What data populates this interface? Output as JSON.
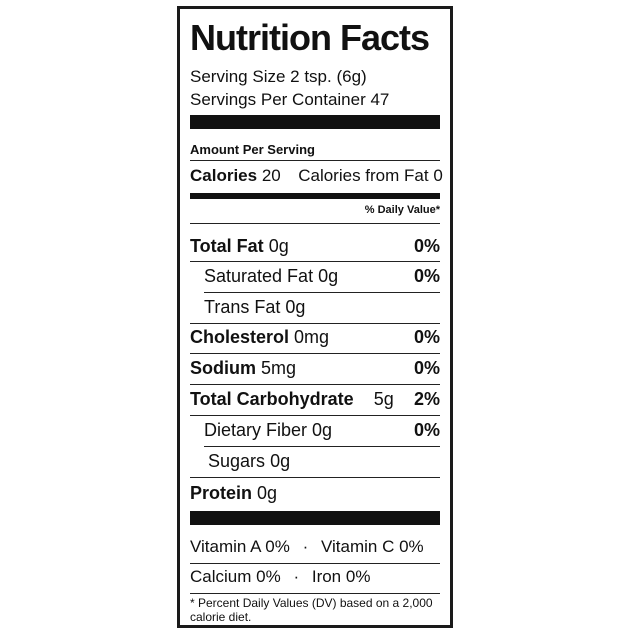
{
  "title": "Nutrition Facts",
  "serving_size": "Serving Size 2 tsp. (6g)",
  "servings_per_container": "Servings Per Container 47",
  "amount_per_serving": "Amount Per Serving",
  "calories": {
    "label": "Calories",
    "value": "20",
    "from_fat_label": "Calories from Fat",
    "from_fat_value": "0"
  },
  "daily_value_header": "% Daily Value*",
  "nutrients": {
    "total_fat": {
      "label": "Total Fat",
      "amount": "0g",
      "dv": "0%"
    },
    "saturated_fat": {
      "label": "Saturated Fat",
      "amount": "0g",
      "dv": "0%"
    },
    "trans_fat": {
      "label": "Trans Fat",
      "amount": "0g"
    },
    "cholesterol": {
      "label": "Cholesterol",
      "amount": "0mg",
      "dv": "0%"
    },
    "sodium": {
      "label": "Sodium",
      "amount": "5mg",
      "dv": "0%"
    },
    "total_carbohydrate": {
      "label": "Total Carbohydrate",
      "amount": "5g",
      "dv": "2%"
    },
    "dietary_fiber": {
      "label": "Dietary Fiber",
      "amount": "0g",
      "dv": "0%"
    },
    "sugars": {
      "label": "Sugars",
      "amount": "0g"
    },
    "protein": {
      "label": "Protein",
      "amount": "0g"
    }
  },
  "vitamins": {
    "vitamin_a": "Vitamin A 0%",
    "vitamin_c": "Vitamin C 0%",
    "calcium": "Calcium 0%",
    "iron": "Iron 0%",
    "separator": "·"
  },
  "footnote": "* Percent Daily Values (DV) based on a 2,000 calorie diet."
}
